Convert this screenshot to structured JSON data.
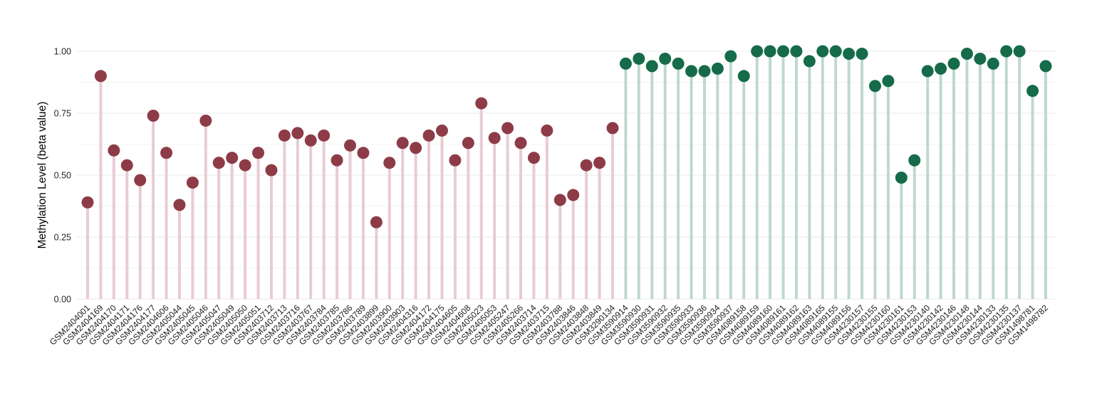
{
  "chart_data": {
    "type": "scatter",
    "variant": "lollipop",
    "title": "",
    "xlabel": "",
    "ylabel": "Methylation Level (beta value)",
    "ylim": [
      0,
      1.0
    ],
    "y_ticks": [
      0,
      0.25,
      0.5,
      0.75,
      1.0
    ],
    "y_tick_labels": [
      "0.00",
      "0.25",
      "0.50",
      "0.75",
      "1.00"
    ],
    "grid": "horizontal-major-and-minor",
    "legend": "none",
    "x_label_rotation_deg": 45,
    "series": [
      {
        "name": "group-1-low-methylation",
        "point_color": "#8e3b48",
        "stem_color": "#e8ccd3",
        "ids": [
          "GSM2404001",
          "GSM2404169",
          "GSM2404170",
          "GSM2404171",
          "GSM2404176",
          "GSM2404177",
          "GSM2404606",
          "GSM2405044",
          "GSM2405045",
          "GSM2405046",
          "GSM2405047",
          "GSM2405049",
          "GSM2405050",
          "GSM2405051",
          "GSM2403712",
          "GSM2403713",
          "GSM2403716",
          "GSM2403767",
          "GSM2403784",
          "GSM2403785",
          "GSM2403786",
          "GSM2403789",
          "GSM2403899",
          "GSM2403900",
          "GSM2403903",
          "GSM2404316",
          "GSM2404172",
          "GSM2404175",
          "GSM2404605",
          "GSM2404608",
          "GSM2405023",
          "GSM2405053",
          "GSM2405247",
          "GSM2405266",
          "GSM2403714",
          "GSM2403715",
          "GSM2403788",
          "GSM2403846",
          "GSM2403848",
          "GSM2403849",
          "GSM3290134"
        ],
        "values": [
          0.39,
          0.9,
          0.6,
          0.54,
          0.48,
          0.74,
          0.59,
          0.38,
          0.47,
          0.72,
          0.55,
          0.57,
          0.54,
          0.59,
          0.52,
          0.66,
          0.67,
          0.64,
          0.66,
          0.56,
          0.62,
          0.59,
          0.31,
          0.55,
          0.63,
          0.61,
          0.66,
          0.68,
          0.56,
          0.63,
          0.79,
          0.65,
          0.69,
          0.63,
          0.57,
          0.68,
          0.4,
          0.42,
          0.54,
          0.55,
          0.69
        ]
      },
      {
        "name": "group-2-high-methylation",
        "point_color": "#156b4a",
        "stem_color": "#bfd8ce",
        "ids": [
          "GSM3590914",
          "GSM3590930",
          "GSM3590931",
          "GSM3590932",
          "GSM3590935",
          "GSM3590933",
          "GSM3590936",
          "GSM3590934",
          "GSM3590937",
          "GSM4089158",
          "GSM4089159",
          "GSM4089160",
          "GSM4089161",
          "GSM4089162",
          "GSM4089163",
          "GSM4089165",
          "GSM4089155",
          "GSM4089156",
          "GSM4230157",
          "GSM4230155",
          "GSM4230160",
          "GSM4230161",
          "GSM4230153",
          "GSM4230140",
          "GSM4230142",
          "GSM4230146",
          "GSM4230148",
          "GSM4230144",
          "GSM4230133",
          "GSM4230135",
          "GSM4230137",
          "GSM1498781",
          "GSM1498782"
        ],
        "values": [
          0.95,
          0.97,
          0.94,
          0.97,
          0.95,
          0.92,
          0.92,
          0.93,
          0.98,
          0.9,
          1.0,
          1.0,
          1.0,
          1.0,
          0.96,
          1.0,
          1.0,
          0.99,
          0.99,
          0.86,
          0.88,
          0.49,
          0.56,
          0.92,
          0.93,
          0.95,
          0.99,
          0.97,
          0.95,
          1.0,
          1.0,
          0.84,
          0.94
        ]
      }
    ]
  }
}
